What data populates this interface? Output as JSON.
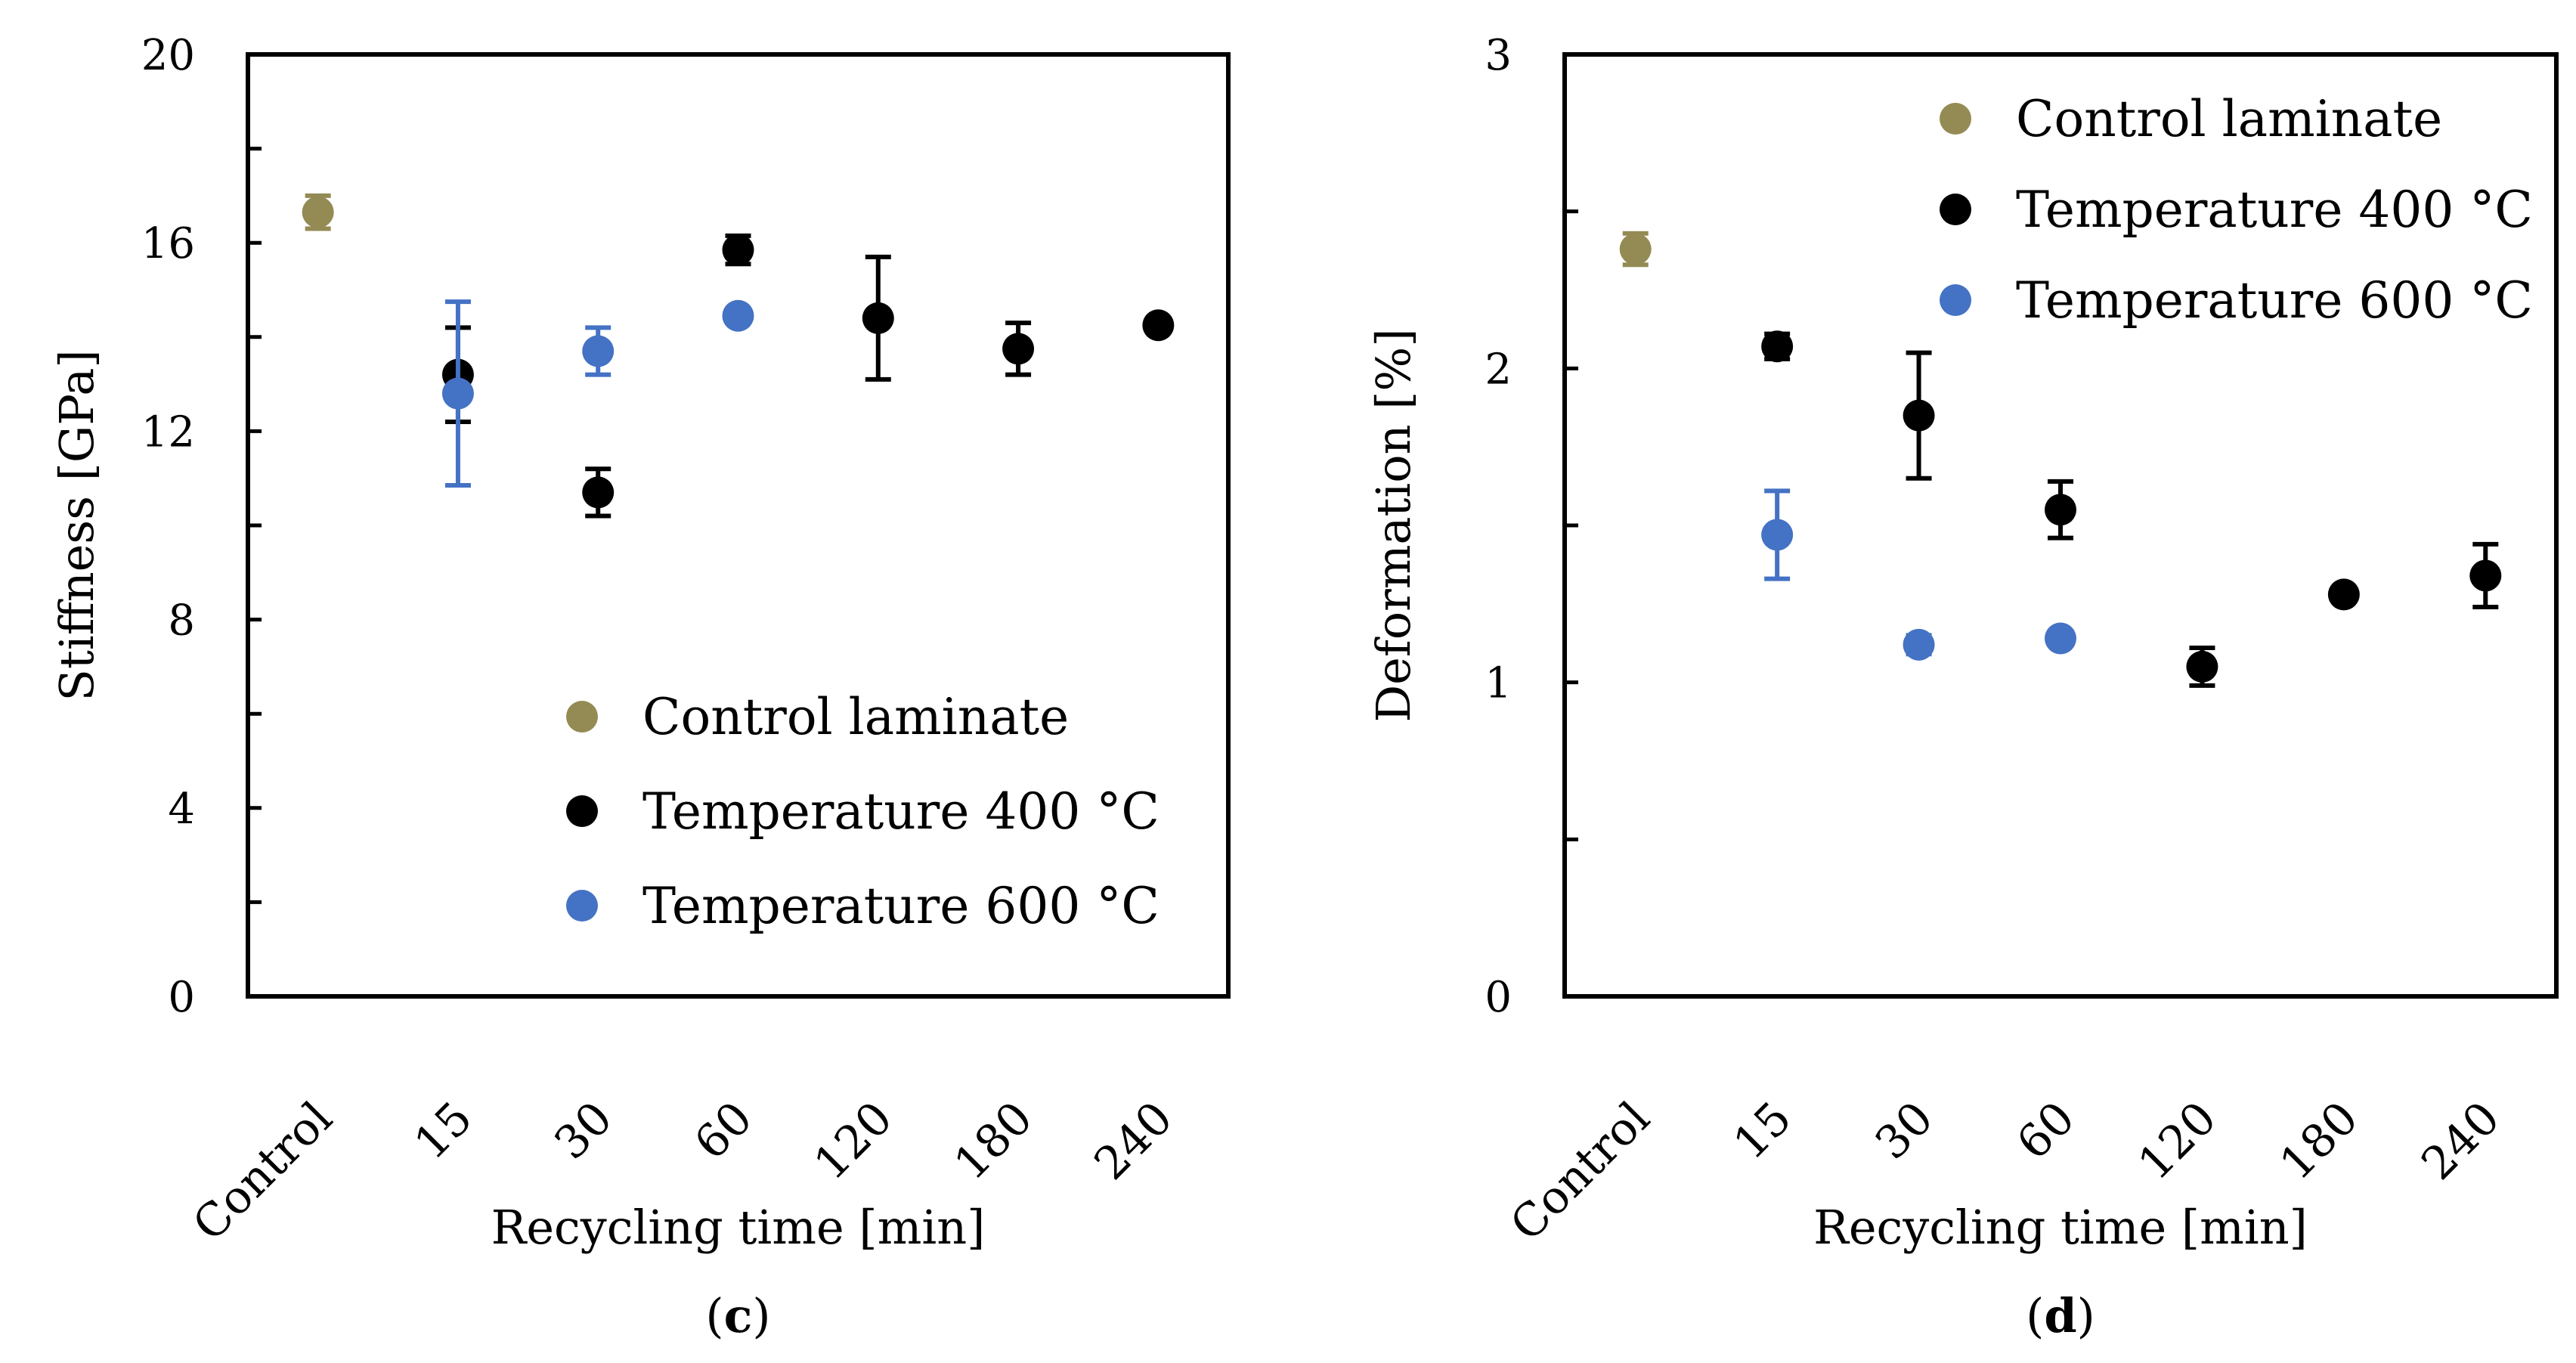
{
  "chart_data": [
    {
      "type": "scatter",
      "panel_label": "c",
      "categories": [
        "Control",
        "15",
        "30",
        "60",
        "120",
        "180",
        "240"
      ],
      "xlabel": "Recycling time [min]",
      "ylabel": "Stiffness [GPa]",
      "ylim": [
        0,
        20
      ],
      "yticks": [
        0,
        4,
        8,
        12,
        16,
        20
      ],
      "ytick_labels": [
        "0",
        "4",
        "8",
        "12",
        "16",
        "20"
      ],
      "minor_step": 2,
      "legend_position": "bottom-right",
      "grid": false,
      "series": [
        {
          "name": "Control laminate",
          "color": "#948B54",
          "points": [
            {
              "category": "Control",
              "y": 16.65,
              "err": 0.35
            }
          ]
        },
        {
          "name": "Temperature 400 °C",
          "color": "#000000",
          "points": [
            {
              "category": "15",
              "y": 13.2,
              "err": 1.0
            },
            {
              "category": "30",
              "y": 10.7,
              "err": 0.5
            },
            {
              "category": "60",
              "y": 15.85,
              "err": 0.3
            },
            {
              "category": "120",
              "y": 14.4,
              "err": 1.3
            },
            {
              "category": "180",
              "y": 13.75,
              "err": 0.55
            },
            {
              "category": "240",
              "y": 14.25,
              "err": 0.15
            }
          ]
        },
        {
          "name": "Temperature 600 °C",
          "color": "#4472C4",
          "points": [
            {
              "category": "15",
              "y": 12.8,
              "err": 1.95
            },
            {
              "category": "30",
              "y": 13.7,
              "err": 0.5
            },
            {
              "category": "60",
              "y": 14.45,
              "err": 0.1
            }
          ]
        }
      ]
    },
    {
      "type": "scatter",
      "panel_label": "d",
      "categories": [
        "Control",
        "15",
        "30",
        "60",
        "120",
        "180",
        "240"
      ],
      "xlabel": "Recycling time [min]",
      "ylabel": "Deformation [%]",
      "ylim": [
        0,
        3
      ],
      "yticks": [
        0,
        1,
        2,
        3
      ],
      "ytick_labels": [
        "0",
        "1",
        "2",
        "3"
      ],
      "minor_step": 0.5,
      "legend_position": "top-right",
      "grid": false,
      "series": [
        {
          "name": "Control laminate",
          "color": "#948B54",
          "points": [
            {
              "category": "Control",
              "y": 2.38,
              "err": 0.05
            }
          ]
        },
        {
          "name": "Temperature 400 °C",
          "color": "#000000",
          "points": [
            {
              "category": "15",
              "y": 2.07,
              "err": 0.04
            },
            {
              "category": "30",
              "y": 1.85,
              "err": 0.2
            },
            {
              "category": "60",
              "y": 1.55,
              "err": 0.09
            },
            {
              "category": "120",
              "y": 1.05,
              "err": 0.06
            },
            {
              "category": "180",
              "y": 1.28,
              "err": 0.0
            },
            {
              "category": "240",
              "y": 1.34,
              "err": 0.1
            }
          ]
        },
        {
          "name": "Temperature 600 °C",
          "color": "#4472C4",
          "points": [
            {
              "category": "15",
              "y": 1.47,
              "err": 0.14
            },
            {
              "category": "30",
              "y": 1.12,
              "err": 0.03
            },
            {
              "category": "60",
              "y": 1.14,
              "err": 0.0
            }
          ]
        }
      ]
    }
  ]
}
